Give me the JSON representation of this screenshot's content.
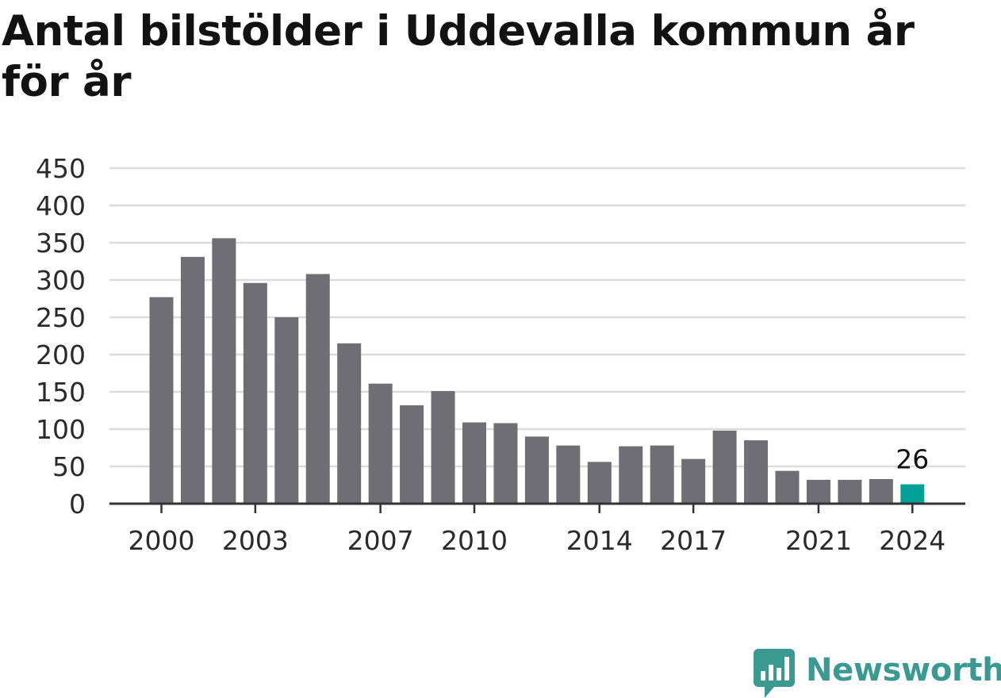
{
  "colors": {
    "bar": "#6f6e74",
    "highlight": "#00a196",
    "grid": "#dcdcdc",
    "axis": "#333333",
    "brand": "#3a9a92"
  },
  "chart_data": {
    "type": "bar",
    "title": "Antal bilstölder i Uddevalla kommun år för år",
    "xlabel": "",
    "ylabel": "",
    "ylim": [
      0,
      450
    ],
    "grid": true,
    "legend": "none",
    "y_ticks": [
      0,
      50,
      100,
      150,
      200,
      250,
      300,
      350,
      400,
      450
    ],
    "x_tick_labels": [
      "2000",
      "2003",
      "2007",
      "2010",
      "2014",
      "2017",
      "2021",
      "2024"
    ],
    "categories": [
      2000,
      2001,
      2002,
      2003,
      2004,
      2005,
      2006,
      2007,
      2008,
      2009,
      2010,
      2011,
      2012,
      2013,
      2014,
      2015,
      2016,
      2017,
      2018,
      2019,
      2020,
      2021,
      2022,
      2023,
      2024
    ],
    "values": [
      277,
      331,
      356,
      296,
      250,
      308,
      215,
      161,
      132,
      151,
      109,
      108,
      90,
      78,
      56,
      77,
      78,
      60,
      98,
      85,
      44,
      32,
      32,
      33,
      26
    ],
    "highlight_index": 24,
    "annotations": [
      {
        "category": 2024,
        "text": "26"
      }
    ]
  },
  "logo": {
    "text": "Newsworthy",
    "icon": "newsworthy-chart-bubble-icon"
  }
}
